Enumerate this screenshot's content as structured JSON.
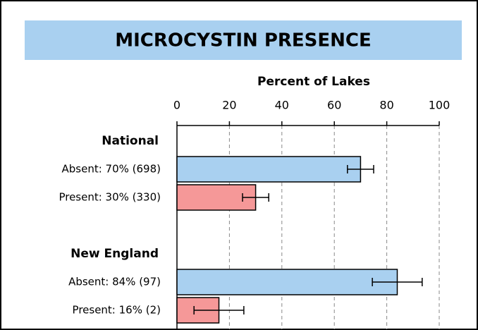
{
  "chart_data": {
    "type": "bar",
    "title": "MICROCYSTIN PRESENCE",
    "x_label": "Percent of Lakes",
    "xlim": [
      0,
      100
    ],
    "xticks": [
      0,
      20,
      40,
      60,
      80,
      100
    ],
    "grid": true,
    "colors": [
      "#a9d0f0",
      "#f59898"
    ],
    "groups": [
      {
        "name": "National",
        "categories": [
          "Absent: 70% (698)",
          "Present: 30% (330)"
        ],
        "values": [
          70,
          30
        ],
        "errors": [
          5,
          5
        ]
      },
      {
        "name": "New England",
        "categories": [
          "Absent: 84% (97)",
          "Present: 16% (2)"
        ],
        "values": [
          84,
          16
        ],
        "errors": [
          9.5,
          9.5
        ]
      }
    ]
  }
}
